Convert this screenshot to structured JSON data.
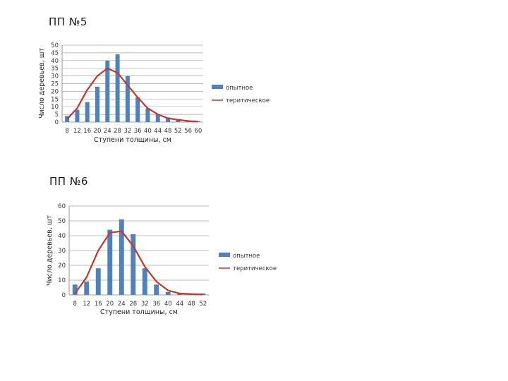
{
  "charts": [
    {
      "heading": "ПП №5"
    },
    {
      "heading": "ПП №6"
    }
  ],
  "colors": {
    "bar": "#4f81bd",
    "line": "#c0392b",
    "grid": "#a6a6a6"
  },
  "chart_data": [
    {
      "type": "bar",
      "title": "ПП №5",
      "xlabel": "Ступени толщины, см",
      "ylabel": "Число деревьев, шт",
      "categories": [
        "8",
        "12",
        "16",
        "20",
        "24",
        "28",
        "32",
        "36",
        "40",
        "44",
        "48",
        "52",
        "56",
        "60"
      ],
      "ylim": [
        0,
        50
      ],
      "yticks": [
        0,
        5,
        10,
        15,
        20,
        25,
        30,
        35,
        40,
        45,
        50
      ],
      "grid": true,
      "legend_position": "right",
      "series": [
        {
          "name": "опытное",
          "type": "bar",
          "values": [
            4,
            8,
            13,
            23,
            40,
            44,
            30,
            16,
            9,
            5,
            3,
            2,
            1,
            0.5
          ]
        },
        {
          "name": "теритическое",
          "type": "line",
          "values": [
            2,
            9,
            21,
            30,
            35,
            32,
            24,
            16,
            9,
            5,
            2.5,
            1.5,
            0.7,
            0.3
          ]
        }
      ]
    },
    {
      "type": "bar",
      "title": "ПП №6",
      "xlabel": "Ступени толщины, см",
      "ylabel": "Число деревьев, шт",
      "categories": [
        "8",
        "12",
        "16",
        "20",
        "24",
        "28",
        "32",
        "36",
        "40",
        "44",
        "48",
        "52"
      ],
      "ylim": [
        0,
        60
      ],
      "yticks": [
        0,
        10,
        20,
        30,
        40,
        50,
        60
      ],
      "grid": true,
      "legend_position": "right",
      "series": [
        {
          "name": "опытное",
          "type": "bar",
          "values": [
            7,
            9,
            18,
            44,
            51,
            41,
            18,
            7,
            2,
            1,
            1,
            1
          ]
        },
        {
          "name": "теритическое",
          "type": "line",
          "values": [
            1,
            12,
            30,
            42,
            43,
            33,
            19,
            9,
            3,
            1,
            0.5,
            0.3
          ]
        }
      ]
    }
  ]
}
